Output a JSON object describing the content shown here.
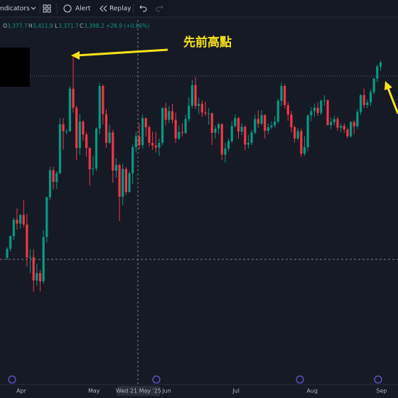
{
  "toolbar": {
    "indicators": "ndicators",
    "alert": "Alert",
    "replay": "Replay"
  },
  "header": {
    "open_key": "O",
    "open": "3,377.7",
    "high_key": "H",
    "high": "3,411.9",
    "low_key": "L",
    "low": "3,371.7",
    "close_key": "C",
    "close": "3,398.2",
    "change": "+28.9 (+0.86%)"
  },
  "annotation": "先前高點",
  "crosshair_label": "Wed 21 May '25",
  "chart_data": {
    "type": "candlestick",
    "up_color": "#089981",
    "down_color": "#f23645",
    "ylim": [
      2745,
      3580
    ],
    "categories": [
      null,
      null,
      null,
      "Apr",
      null,
      null,
      null,
      null,
      null,
      null,
      null,
      null,
      null,
      null,
      null,
      null,
      null,
      null,
      null,
      null,
      null,
      null,
      null,
      null,
      null,
      "May",
      null,
      null,
      null,
      null,
      null,
      null,
      null,
      null,
      null,
      null,
      null,
      null,
      null,
      null,
      null,
      null,
      null,
      null,
      null,
      null,
      null,
      "Jun",
      null,
      null,
      null,
      null,
      null,
      null,
      null,
      null,
      null,
      null,
      null,
      null,
      null,
      null,
      null,
      null,
      null,
      null,
      null,
      null,
      "Jul",
      null,
      null,
      null,
      null,
      null,
      null,
      null,
      null,
      null,
      null,
      null,
      null,
      null,
      null,
      null,
      null,
      null,
      null,
      null,
      null,
      null,
      null,
      "Aug",
      null,
      null,
      null,
      null,
      null,
      null,
      null,
      null,
      null,
      null,
      null,
      null,
      null,
      null,
      null,
      null,
      null,
      null,
      null,
      null,
      "Sep",
      null
    ],
    "candles": [
      [
        3035,
        3060,
        3030,
        3056
      ],
      [
        3056,
        3087,
        3050,
        3085
      ],
      [
        3085,
        3128,
        3076,
        3123
      ],
      [
        3123,
        3149,
        3100,
        3114
      ],
      [
        3114,
        3136,
        3102,
        3134
      ],
      [
        3134,
        3168,
        3105,
        3112
      ],
      [
        3112,
        3136,
        3015,
        3036
      ],
      [
        3036,
        3055,
        3000,
        3037
      ],
      [
        3037,
        3055,
        2957,
        2983
      ],
      [
        2983,
        3022,
        2970,
        3000
      ],
      [
        3000,
        3007,
        2958,
        2981
      ],
      [
        2981,
        3099,
        2975,
        3083
      ],
      [
        3083,
        3176,
        3071,
        3175
      ],
      [
        3175,
        3245,
        3168,
        3237
      ],
      [
        3237,
        3245,
        3193,
        3210
      ],
      [
        3210,
        3235,
        3194,
        3230
      ],
      [
        3230,
        3357,
        3228,
        3343
      ],
      [
        3343,
        3357,
        3284,
        3327
      ],
      [
        3327,
        3332,
        3320,
        3327
      ],
      [
        3327,
        3430,
        3325,
        3425
      ],
      [
        3425,
        3500,
        3370,
        3381
      ],
      [
        3381,
        3386,
        3260,
        3288
      ],
      [
        3288,
        3367,
        3272,
        3349
      ],
      [
        3349,
        3352,
        3305,
        3319
      ],
      [
        3319,
        3325,
        3268,
        3288
      ],
      [
        3288,
        3290,
        3202,
        3239
      ],
      [
        3239,
        3270,
        3225,
        3241
      ],
      [
        3241,
        3336,
        3235,
        3333
      ],
      [
        3333,
        3438,
        3320,
        3431
      ],
      [
        3431,
        3435,
        3343,
        3366
      ],
      [
        3366,
        3377,
        3289,
        3300
      ],
      [
        3300,
        3342,
        3298,
        3324
      ],
      [
        3324,
        3330,
        3208,
        3236
      ],
      [
        3236,
        3265,
        3220,
        3249
      ],
      [
        3249,
        3252,
        3120,
        3176
      ],
      [
        3176,
        3252,
        3157,
        3240
      ],
      [
        3240,
        3245,
        3180,
        3187
      ],
      [
        3187,
        3235,
        3185,
        3230
      ],
      [
        3230,
        3296,
        3205,
        3290
      ],
      [
        3290,
        3325,
        3278,
        3315
      ],
      [
        3315,
        3345,
        3285,
        3295
      ],
      [
        3295,
        3365,
        3287,
        3357
      ],
      [
        3357,
        3358,
        3315,
        3336
      ],
      [
        3336,
        3340,
        3291,
        3300
      ],
      [
        3300,
        3326,
        3284,
        3294
      ],
      [
        3294,
        3325,
        3278,
        3289
      ],
      [
        3289,
        3310,
        3270,
        3300
      ],
      [
        3300,
        3382,
        3295,
        3380
      ],
      [
        3380,
        3392,
        3340,
        3353
      ],
      [
        3353,
        3385,
        3346,
        3373
      ],
      [
        3373,
        3390,
        3345,
        3353
      ],
      [
        3353,
        3370,
        3300,
        3310
      ],
      [
        3310,
        3340,
        3306,
        3325
      ],
      [
        3325,
        3345,
        3315,
        3323
      ],
      [
        3323,
        3365,
        3320,
        3355
      ],
      [
        3355,
        3405,
        3348,
        3386
      ],
      [
        3386,
        3445,
        3380,
        3433
      ],
      [
        3433,
        3452,
        3378,
        3385
      ],
      [
        3385,
        3403,
        3366,
        3390
      ],
      [
        3390,
        3398,
        3360,
        3370
      ],
      [
        3370,
        3395,
        3362,
        3368
      ],
      [
        3368,
        3380,
        3342,
        3368
      ],
      [
        3368,
        3370,
        3295,
        3323
      ],
      [
        3323,
        3340,
        3310,
        3333
      ],
      [
        3333,
        3346,
        3320,
        3343
      ],
      [
        3343,
        3345,
        3260,
        3273
      ],
      [
        3273,
        3300,
        3255,
        3287
      ],
      [
        3287,
        3310,
        3280,
        3304
      ],
      [
        3304,
        3350,
        3300,
        3339
      ],
      [
        3339,
        3365,
        3335,
        3357
      ],
      [
        3357,
        3360,
        3310,
        3326
      ],
      [
        3326,
        3345,
        3318,
        3337
      ],
      [
        3337,
        3340,
        3283,
        3296
      ],
      [
        3296,
        3318,
        3287,
        3300
      ],
      [
        3300,
        3330,
        3295,
        3324
      ],
      [
        3324,
        3365,
        3320,
        3355
      ],
      [
        3355,
        3375,
        3335,
        3344
      ],
      [
        3344,
        3375,
        3340,
        3364
      ],
      [
        3364,
        3366,
        3310,
        3328
      ],
      [
        3328,
        3345,
        3320,
        3336
      ],
      [
        3336,
        3350,
        3332,
        3340
      ],
      [
        3340,
        3362,
        3335,
        3349
      ],
      [
        3349,
        3402,
        3345,
        3397
      ],
      [
        3397,
        3439,
        3385,
        3431
      ],
      [
        3431,
        3435,
        3380,
        3387
      ],
      [
        3387,
        3394,
        3351,
        3365
      ],
      [
        3365,
        3373,
        3324,
        3336
      ],
      [
        3336,
        3340,
        3301,
        3310
      ],
      [
        3310,
        3334,
        3306,
        3327
      ],
      [
        3327,
        3333,
        3268,
        3275
      ],
      [
        3275,
        3315,
        3270,
        3290
      ],
      [
        3290,
        3366,
        3281,
        3363
      ],
      [
        3363,
        3382,
        3350,
        3373
      ],
      [
        3373,
        3390,
        3360,
        3381
      ],
      [
        3381,
        3393,
        3362,
        3369
      ],
      [
        3369,
        3400,
        3364,
        3397
      ],
      [
        3397,
        3410,
        3385,
        3398
      ],
      [
        3398,
        3400,
        3340,
        3341
      ],
      [
        3341,
        3358,
        3332,
        3348
      ],
      [
        3348,
        3362,
        3340,
        3355
      ],
      [
        3355,
        3360,
        3328,
        3335
      ],
      [
        3335,
        3345,
        3325,
        3339
      ],
      [
        3339,
        3345,
        3323,
        3331
      ],
      [
        3331,
        3335,
        3311,
        3315
      ],
      [
        3315,
        3350,
        3312,
        3348
      ],
      [
        3348,
        3352,
        3320,
        3338
      ],
      [
        3338,
        3378,
        3332,
        3371
      ],
      [
        3371,
        3412,
        3365,
        3410
      ],
      [
        3410,
        3425,
        3380,
        3387
      ],
      [
        3387,
        3400,
        3380,
        3393
      ],
      [
        3393,
        3423,
        3385,
        3417
      ],
      [
        3417,
        3450,
        3412,
        3448
      ],
      [
        3448,
        3480,
        3440,
        3476
      ],
      [
        3476,
        3490,
        3466,
        3485
      ]
    ]
  }
}
